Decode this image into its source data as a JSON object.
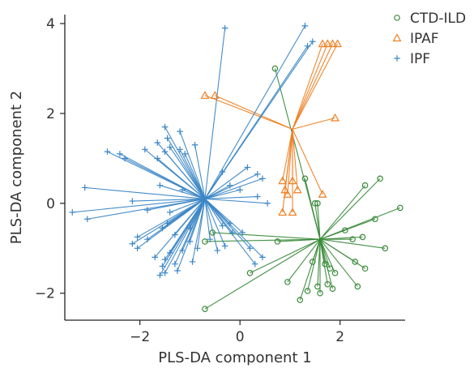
{
  "chart_data": {
    "type": "scatter",
    "title": "",
    "xlabel": "PLS-DA component 1",
    "ylabel": "PLS-DA component 2",
    "xlim": [
      -3.5,
      3.3
    ],
    "ylim": [
      -2.6,
      4.2
    ],
    "xticks": [
      -2,
      0,
      2
    ],
    "yticks": [
      -2,
      0,
      2,
      4
    ],
    "grid": false,
    "legend_position": "top-right",
    "colors": {
      "CTD-ILD": "#3a8a3a",
      "IPAF": "#f07f22",
      "IPF": "#3b86c6"
    },
    "markers": {
      "CTD-ILD": "circle",
      "IPAF": "triangle",
      "IPF": "plus"
    },
    "series": [
      {
        "name": "CTD-ILD",
        "centroid": [
          1.6,
          -0.8
        ],
        "points": [
          [
            0.7,
            3.0
          ],
          [
            1.3,
            0.55
          ],
          [
            1.5,
            0.0
          ],
          [
            1.55,
            0.0
          ],
          [
            2.5,
            0.4
          ],
          [
            2.8,
            0.55
          ],
          [
            3.2,
            -0.1
          ],
          [
            2.7,
            -0.35
          ],
          [
            2.1,
            -0.6
          ],
          [
            2.45,
            -0.75
          ],
          [
            2.25,
            -0.8
          ],
          [
            2.9,
            -1.0
          ],
          [
            0.75,
            -0.85
          ],
          [
            2.3,
            -1.3
          ],
          [
            1.45,
            -1.3
          ],
          [
            1.7,
            -1.35
          ],
          [
            1.8,
            -1.45
          ],
          [
            2.5,
            -1.45
          ],
          [
            1.9,
            -1.55
          ],
          [
            0.2,
            -1.55
          ],
          [
            1.75,
            -1.8
          ],
          [
            1.55,
            -1.85
          ],
          [
            1.85,
            -1.9
          ],
          [
            2.35,
            -1.85
          ],
          [
            0.95,
            -1.75
          ],
          [
            1.35,
            -1.95
          ],
          [
            1.6,
            -2.0
          ],
          [
            1.2,
            -2.15
          ],
          [
            -0.7,
            -0.85
          ],
          [
            -0.55,
            -0.65
          ],
          [
            -0.7,
            -2.35
          ]
        ]
      },
      {
        "name": "IPAF",
        "centroid": [
          1.05,
          1.65
        ],
        "points": [
          [
            1.65,
            3.55
          ],
          [
            1.75,
            3.55
          ],
          [
            1.85,
            3.55
          ],
          [
            1.95,
            3.55
          ],
          [
            -0.7,
            2.4
          ],
          [
            -0.5,
            2.4
          ],
          [
            1.9,
            1.9
          ],
          [
            0.85,
            0.5
          ],
          [
            1.05,
            0.5
          ],
          [
            0.9,
            0.3
          ],
          [
            1.15,
            0.3
          ],
          [
            0.95,
            0.2
          ],
          [
            1.65,
            0.2
          ],
          [
            0.85,
            -0.2
          ],
          [
            1.05,
            -0.2
          ]
        ]
      },
      {
        "name": "IPF",
        "centroid": [
          -0.7,
          0.1
        ],
        "points": [
          [
            1.3,
            3.95
          ],
          [
            -0.3,
            3.9
          ],
          [
            1.45,
            3.6
          ],
          [
            1.35,
            3.5
          ],
          [
            -1.5,
            1.7
          ],
          [
            -1.2,
            1.6
          ],
          [
            -1.45,
            1.45
          ],
          [
            -1.65,
            1.35
          ],
          [
            -0.9,
            1.3
          ],
          [
            -1.4,
            1.25
          ],
          [
            -1.2,
            1.2
          ],
          [
            -1.9,
            1.2
          ],
          [
            -1.5,
            1.15
          ],
          [
            -1.65,
            1.0
          ],
          [
            -2.3,
            1.0
          ],
          [
            -2.65,
            1.15
          ],
          [
            -2.4,
            1.1
          ],
          [
            -1.1,
            1.1
          ],
          [
            0.15,
            0.8
          ],
          [
            0.35,
            0.65
          ],
          [
            0.45,
            0.55
          ],
          [
            -0.35,
            0.7
          ],
          [
            -0.2,
            0.4
          ],
          [
            0.0,
            0.3
          ],
          [
            0.35,
            0.15
          ],
          [
            0.55,
            0.0
          ],
          [
            -3.1,
            0.35
          ],
          [
            -3.35,
            -0.2
          ],
          [
            -3.05,
            -0.35
          ],
          [
            -1.6,
            0.4
          ],
          [
            -1.15,
            0.3
          ],
          [
            -2.15,
            0.05
          ],
          [
            -1.85,
            -0.15
          ],
          [
            -1.4,
            -0.2
          ],
          [
            -1.55,
            -0.55
          ],
          [
            -1.45,
            -0.45
          ],
          [
            -1.0,
            -0.55
          ],
          [
            -1.3,
            -0.7
          ],
          [
            -2.05,
            -0.75
          ],
          [
            -1.85,
            -0.8
          ],
          [
            -2.15,
            -0.9
          ],
          [
            -2.05,
            -1.0
          ],
          [
            -0.2,
            -0.45
          ],
          [
            -0.35,
            -0.5
          ],
          [
            -0.15,
            -0.65
          ],
          [
            0.05,
            -0.65
          ],
          [
            0.2,
            -1.0
          ],
          [
            0.45,
            -1.2
          ],
          [
            -0.85,
            -1.0
          ],
          [
            -1.15,
            -1.05
          ],
          [
            -1.4,
            -1.1
          ],
          [
            -1.7,
            -1.2
          ],
          [
            -1.5,
            -1.25
          ],
          [
            -0.95,
            -1.3
          ],
          [
            -1.3,
            -1.35
          ],
          [
            -1.55,
            -1.4
          ],
          [
            -1.25,
            -1.5
          ],
          [
            -1.5,
            -1.55
          ],
          [
            -1.6,
            -1.6
          ],
          [
            0.3,
            -1.35
          ],
          [
            -0.45,
            -1.05
          ],
          [
            -0.3,
            -0.95
          ],
          [
            -0.6,
            -0.8
          ],
          [
            -1.0,
            -0.85
          ]
        ]
      }
    ]
  }
}
